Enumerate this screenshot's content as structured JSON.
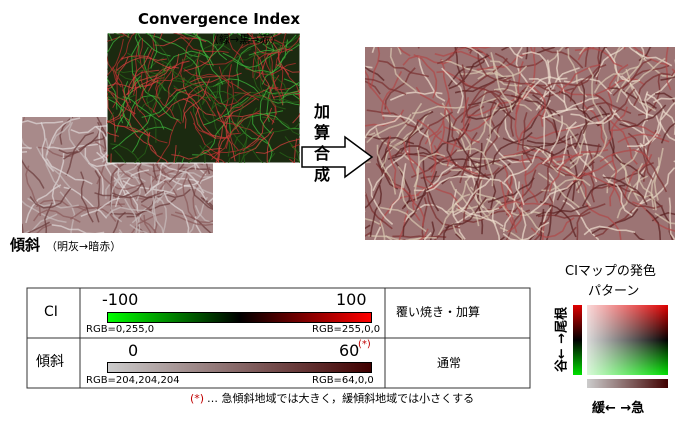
{
  "header": {
    "title": "Convergence Index",
    "subtitle": "（緑→黒→赤）"
  },
  "slope": {
    "title": "傾斜",
    "subtitle": "（明灰→暗赤）"
  },
  "arrow": {
    "label": "加算合成"
  },
  "table": {
    "rows": [
      {
        "label": "CI",
        "min": -100,
        "max": 100,
        "min_rgb": "RGB=0,255,0",
        "max_rgb": "RGB=255,0,0",
        "mode": "覆い焼き・加算"
      },
      {
        "label": "傾斜",
        "min": 0,
        "max": 60,
        "max_note": "(*)",
        "min_rgb": "RGB=204,204,204",
        "max_rgb": "RGB=64,0,0",
        "mode": "通常"
      }
    ]
  },
  "footnote": {
    "mark": "(*)",
    "text": "… 急傾斜地域では大きく，緩傾斜地域では小さくする"
  },
  "legend": {
    "title_lines": [
      "CIマップの発色",
      "パターン"
    ],
    "y_axis": "谷← →尾根",
    "x_axis": "緩← →急"
  }
}
